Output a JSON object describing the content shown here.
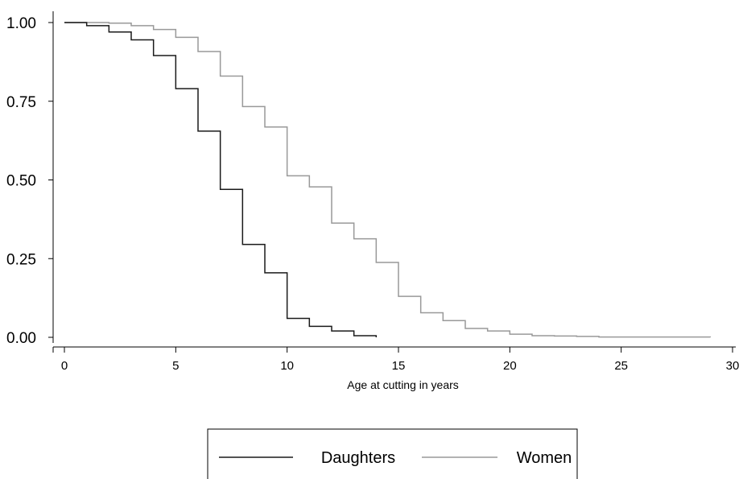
{
  "chart_data": {
    "type": "line",
    "step": true,
    "title": "",
    "xlabel": "Age at cutting in years",
    "ylabel": "",
    "xlim": [
      0,
      30
    ],
    "ylim": [
      0,
      1
    ],
    "x_ticks": [
      0,
      5,
      10,
      15,
      20,
      25,
      30
    ],
    "x_tick_labels": [
      "0",
      "5",
      "10",
      "15",
      "20",
      "25",
      "30"
    ],
    "y_ticks": [
      0,
      0.25,
      0.5,
      0.75,
      1
    ],
    "y_tick_labels": [
      "0.00",
      "0.25",
      "0.50",
      "0.75",
      "1.00"
    ],
    "grid": false,
    "legend_position": "bottom",
    "series": [
      {
        "name": "Daughters",
        "color": "#1a1a1a",
        "x": [
          0,
          1,
          2,
          3,
          4,
          5,
          6,
          7,
          8,
          9,
          10,
          11,
          12,
          13,
          14
        ],
        "y": [
          1.0,
          0.99,
          0.97,
          0.945,
          0.895,
          0.79,
          0.655,
          0.47,
          0.295,
          0.205,
          0.06,
          0.035,
          0.02,
          0.005,
          0.0
        ]
      },
      {
        "name": "Women",
        "color": "#999999",
        "x": [
          0,
          2,
          3,
          4,
          5,
          6,
          7,
          8,
          9,
          10,
          11,
          12,
          13,
          14,
          15,
          16,
          17,
          18,
          19,
          20,
          21,
          22,
          23,
          24,
          29
        ],
        "y": [
          1.0,
          0.998,
          0.99,
          0.978,
          0.953,
          0.908,
          0.83,
          0.733,
          0.668,
          0.513,
          0.478,
          0.363,
          0.313,
          0.238,
          0.13,
          0.078,
          0.053,
          0.028,
          0.02,
          0.01,
          0.005,
          0.004,
          0.003,
          0.001,
          0.0
        ]
      }
    ]
  }
}
